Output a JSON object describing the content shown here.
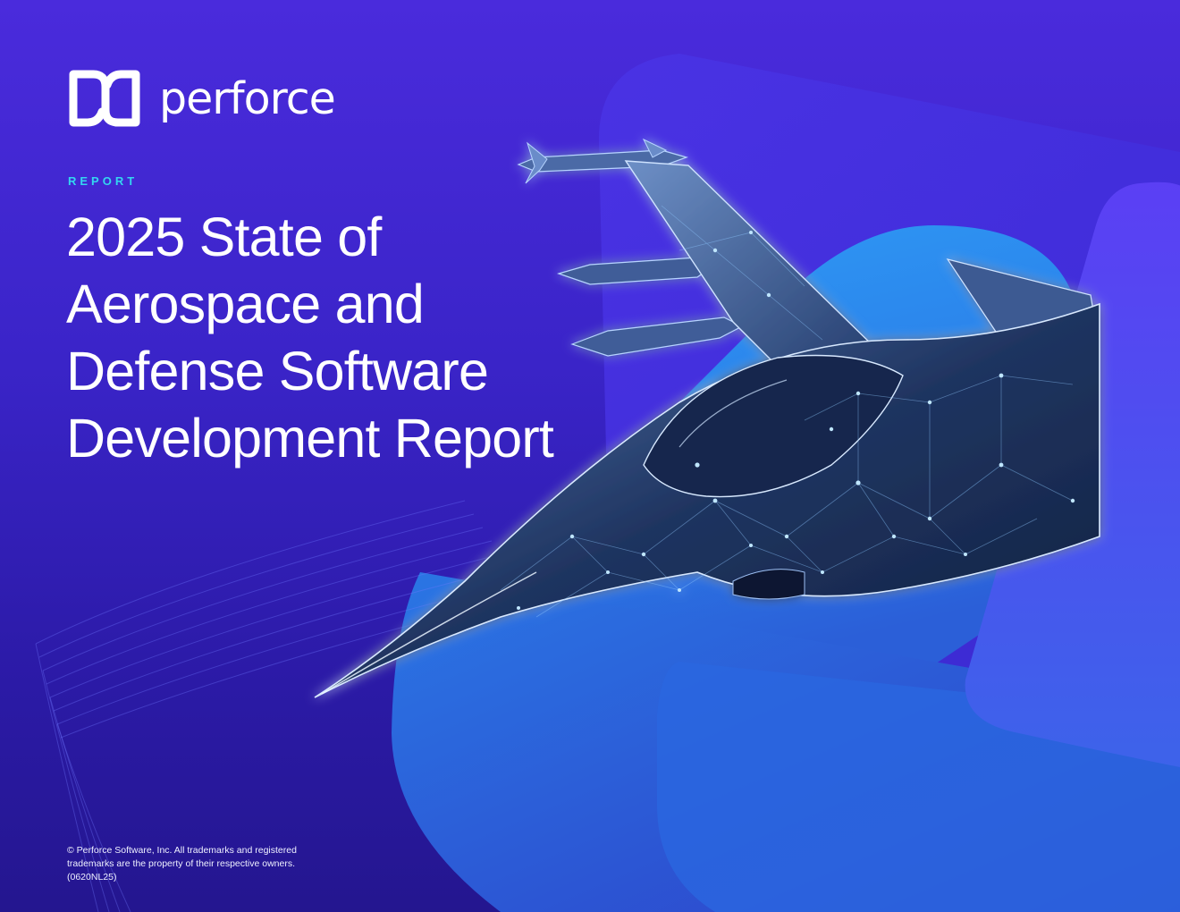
{
  "brand": {
    "name": "perforce",
    "logo_icon": "perforce-logo-icon"
  },
  "cover": {
    "eyebrow": "REPORT",
    "title_lines": [
      "2025 State of",
      "Aerospace and",
      "Defense Software",
      "Development Report"
    ],
    "illustration": "fighter-jet-illustration"
  },
  "footer": {
    "legal_lines": [
      "© Perforce Software, Inc. All trademarks and registered",
      "trademarks are the property of their respective owners.",
      "(0620NL25)"
    ]
  },
  "colors": {
    "background": "#3a24c8",
    "accent_cyan": "#33d6f0",
    "panel_light_blue": "#2a8af0",
    "panel_violet": "#5a3bf2",
    "text": "#ffffff"
  }
}
